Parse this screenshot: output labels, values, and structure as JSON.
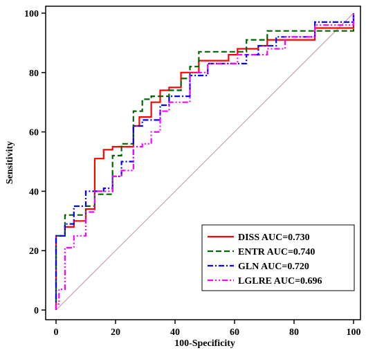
{
  "chart_data": {
    "type": "line",
    "title": "",
    "xlabel": "100-Specificity",
    "ylabel": "Sensitivity",
    "xlim": [
      0,
      100
    ],
    "ylim": [
      0,
      100
    ],
    "xticks": [
      0,
      20,
      40,
      60,
      80,
      100
    ],
    "yticks": [
      0,
      20,
      40,
      60,
      80,
      100
    ],
    "tick_labels_x": [
      "0",
      "20",
      "40",
      "60",
      "80",
      "100"
    ],
    "tick_labels_y": [
      "0",
      "20",
      "40",
      "60",
      "80",
      "100"
    ],
    "grid": false,
    "legend_position": "bottom-right",
    "reference_line": {
      "x": [
        0,
        100
      ],
      "y": [
        0,
        100
      ],
      "color": "#c89090"
    },
    "series": [
      {
        "name": "DISS AUC=0.730",
        "color": "#ff0000",
        "dash": "solid",
        "x": [
          0,
          0,
          3,
          3,
          6,
          6,
          10,
          10,
          13,
          13,
          16,
          16,
          19,
          19,
          26,
          26,
          28,
          28,
          32,
          32,
          35,
          35,
          38,
          38,
          42,
          42,
          48,
          48,
          58,
          58,
          61,
          61,
          68,
          68,
          71,
          71,
          87,
          87,
          100,
          100
        ],
        "y": [
          0,
          25,
          25,
          28,
          28,
          30,
          30,
          34,
          34,
          51,
          51,
          54,
          54,
          55,
          55,
          62,
          62,
          65,
          65,
          70,
          70,
          74,
          74,
          75,
          75,
          80,
          80,
          84,
          84,
          86,
          86,
          88,
          88,
          89,
          89,
          91,
          91,
          95,
          95,
          100
        ]
      },
      {
        "name": "ENTR AUC=0.740",
        "color": "#006400",
        "dash": "8,4",
        "x": [
          0,
          0,
          3,
          3,
          10,
          10,
          13,
          13,
          19,
          19,
          22,
          22,
          26,
          26,
          29,
          29,
          32,
          32,
          38,
          38,
          42,
          42,
          45,
          45,
          48,
          48,
          64,
          64,
          71,
          71,
          100,
          100
        ],
        "y": [
          0,
          25,
          25,
          32,
          32,
          35,
          35,
          39,
          39,
          52,
          52,
          56,
          56,
          67,
          67,
          71,
          71,
          72,
          72,
          74,
          74,
          78,
          78,
          82,
          82,
          87,
          87,
          91,
          91,
          94,
          94,
          100
        ]
      },
      {
        "name": "GLN AUC=0.720",
        "color": "#0000ff",
        "dash": "8,3,2,3",
        "x": [
          0,
          0,
          3,
          3,
          6,
          6,
          10,
          10,
          16,
          16,
          19,
          19,
          22,
          22,
          26,
          26,
          29,
          29,
          35,
          35,
          38,
          38,
          45,
          45,
          51,
          51,
          64,
          64,
          68,
          68,
          74,
          74,
          87,
          87,
          100,
          100
        ],
        "y": [
          0,
          25,
          25,
          29,
          29,
          35,
          35,
          40,
          40,
          41,
          41,
          45,
          45,
          50,
          50,
          62,
          62,
          64,
          64,
          69,
          69,
          72,
          72,
          79,
          79,
          83,
          83,
          86,
          86,
          89,
          89,
          92,
          92,
          97,
          97,
          100
        ]
      },
      {
        "name": "LGLRE AUC=0.696",
        "color": "#ff00ff",
        "dash": "8,3,2,3,2,3",
        "x": [
          0,
          0,
          1,
          1,
          3,
          3,
          6,
          6,
          10,
          10,
          13,
          13,
          19,
          19,
          22,
          22,
          26,
          26,
          29,
          29,
          32,
          32,
          35,
          35,
          38,
          38,
          45,
          45,
          51,
          51,
          61,
          61,
          71,
          71,
          77,
          77,
          87,
          87,
          100,
          100
        ],
        "y": [
          0,
          2,
          2,
          7,
          7,
          21,
          21,
          25,
          25,
          33,
          33,
          40,
          40,
          45,
          45,
          47,
          47,
          55,
          55,
          56,
          56,
          60,
          60,
          67,
          67,
          70,
          70,
          80,
          80,
          83,
          83,
          86,
          86,
          88,
          88,
          92,
          92,
          96,
          96,
          100
        ]
      }
    ]
  }
}
